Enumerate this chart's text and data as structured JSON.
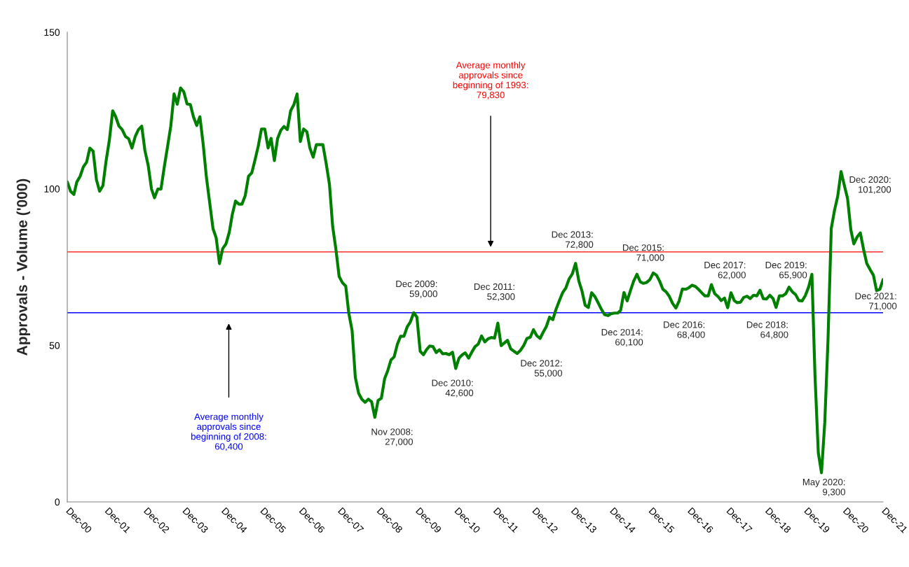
{
  "chart_data": {
    "type": "line",
    "ylabel": "Approvals - Volume ('000)",
    "x": [
      "2000-12",
      "2001-01",
      "2001-02",
      "2001-03",
      "2001-04",
      "2001-05",
      "2001-06",
      "2001-07",
      "2001-08",
      "2001-09",
      "2001-10",
      "2001-11",
      "2001-12",
      "2002-01",
      "2002-02",
      "2002-03",
      "2002-04",
      "2002-05",
      "2002-06",
      "2002-07",
      "2002-08",
      "2002-09",
      "2002-10",
      "2002-11",
      "2002-12",
      "2003-01",
      "2003-02",
      "2003-03",
      "2003-04",
      "2003-05",
      "2003-06",
      "2003-07",
      "2003-08",
      "2003-09",
      "2003-10",
      "2003-11",
      "2003-12",
      "2004-01",
      "2004-02",
      "2004-03",
      "2004-04",
      "2004-05",
      "2004-06",
      "2004-07",
      "2004-08",
      "2004-09",
      "2004-10",
      "2004-11",
      "2004-12",
      "2005-01",
      "2005-02",
      "2005-03",
      "2005-04",
      "2005-05",
      "2005-06",
      "2005-07",
      "2005-08",
      "2005-09",
      "2005-10",
      "2005-11",
      "2005-12",
      "2006-01",
      "2006-02",
      "2006-03",
      "2006-04",
      "2006-05",
      "2006-06",
      "2006-07",
      "2006-08",
      "2006-09",
      "2006-10",
      "2006-11",
      "2006-12",
      "2007-01",
      "2007-02",
      "2007-03",
      "2007-04",
      "2007-05",
      "2007-06",
      "2007-07",
      "2007-08",
      "2007-09",
      "2007-10",
      "2007-11",
      "2007-12",
      "2008-01",
      "2008-02",
      "2008-03",
      "2008-04",
      "2008-05",
      "2008-06",
      "2008-07",
      "2008-08",
      "2008-09",
      "2008-10",
      "2008-11",
      "2008-12",
      "2009-01",
      "2009-02",
      "2009-03",
      "2009-04",
      "2009-05",
      "2009-06",
      "2009-07",
      "2009-08",
      "2009-09",
      "2009-10",
      "2009-11",
      "2009-12",
      "2010-01",
      "2010-02",
      "2010-03",
      "2010-04",
      "2010-05",
      "2010-06",
      "2010-07",
      "2010-08",
      "2010-09",
      "2010-10",
      "2010-11",
      "2010-12",
      "2011-01",
      "2011-02",
      "2011-03",
      "2011-04",
      "2011-05",
      "2011-06",
      "2011-07",
      "2011-08",
      "2011-09",
      "2011-10",
      "2011-11",
      "2011-12",
      "2012-01",
      "2012-02",
      "2012-03",
      "2012-04",
      "2012-05",
      "2012-06",
      "2012-07",
      "2012-08",
      "2012-09",
      "2012-10",
      "2012-11",
      "2012-12",
      "2013-01",
      "2013-02",
      "2013-03",
      "2013-04",
      "2013-05",
      "2013-06",
      "2013-07",
      "2013-08",
      "2013-09",
      "2013-10",
      "2013-11",
      "2013-12",
      "2014-01",
      "2014-02",
      "2014-03",
      "2014-04",
      "2014-05",
      "2014-06",
      "2014-07",
      "2014-08",
      "2014-09",
      "2014-10",
      "2014-11",
      "2014-12",
      "2015-01",
      "2015-02",
      "2015-03",
      "2015-04",
      "2015-05",
      "2015-06",
      "2015-07",
      "2015-08",
      "2015-09",
      "2015-10",
      "2015-11",
      "2015-12",
      "2016-01",
      "2016-02",
      "2016-03",
      "2016-04",
      "2016-05",
      "2016-06",
      "2016-07",
      "2016-08",
      "2016-09",
      "2016-10",
      "2016-11",
      "2016-12",
      "2017-01",
      "2017-02",
      "2017-03",
      "2017-04",
      "2017-05",
      "2017-06",
      "2017-07",
      "2017-08",
      "2017-09",
      "2017-10",
      "2017-11",
      "2017-12",
      "2018-01",
      "2018-02",
      "2018-03",
      "2018-04",
      "2018-05",
      "2018-06",
      "2018-07",
      "2018-08",
      "2018-09",
      "2018-10",
      "2018-11",
      "2018-12",
      "2019-01",
      "2019-02",
      "2019-03",
      "2019-04",
      "2019-05",
      "2019-06",
      "2019-07",
      "2019-08",
      "2019-09",
      "2019-10",
      "2019-11",
      "2019-12",
      "2020-01",
      "2020-02",
      "2020-03",
      "2020-04",
      "2020-05",
      "2020-06",
      "2020-07",
      "2020-08",
      "2020-09",
      "2020-10",
      "2020-11",
      "2020-12",
      "2021-01",
      "2021-02",
      "2021-03",
      "2021-04",
      "2021-05",
      "2021-06",
      "2021-07",
      "2021-08",
      "2021-09",
      "2021-10",
      "2021-11",
      "2021-12"
    ],
    "series": [
      {
        "color": "#008000",
        "values": [
          102.2,
          99.2,
          98.2,
          102.2,
          104,
          107,
          108.5,
          113,
          112,
          102.9,
          99.2,
          101,
          108.9,
          115.6,
          124.9,
          123,
          120,
          118.9,
          116.7,
          116,
          113,
          116.7,
          118.9,
          120,
          112.2,
          107.4,
          99.9,
          97.1,
          99.9,
          99.9,
          107,
          113.3,
          120,
          130.3,
          127,
          132.2,
          131,
          127.1,
          126.9,
          123,
          120.2,
          123,
          114.1,
          103.7,
          95.5,
          87.3,
          84.3,
          76.1,
          80.9,
          82.4,
          86.1,
          91.7,
          96.1,
          95.1,
          95.1,
          97.8,
          104,
          105.1,
          109.2,
          113.7,
          119.1,
          119.1,
          113,
          116.1,
          109,
          116,
          118.7,
          119.9,
          118.9,
          124.9,
          126.8,
          130.3,
          115.1,
          119.1,
          118.2,
          113,
          110.1,
          114.1,
          114.1,
          114.1,
          108.1,
          101.4,
          88,
          80.6,
          72,
          70,
          68.9,
          60.2,
          54.7,
          39.8,
          34.7,
          32.8,
          31.8,
          32.8,
          32,
          27,
          32.4,
          33.1,
          39.4,
          41.8,
          45.3,
          46.3,
          50.4,
          52.9,
          52.9,
          55.9,
          57.5,
          60.4,
          59,
          48.1,
          47,
          48.6,
          49.8,
          49.6,
          47.7,
          48.6,
          47.3,
          47.4,
          47,
          47.8,
          42.6,
          45.9,
          47,
          47.6,
          45.9,
          47.8,
          49.6,
          50.4,
          53,
          51.1,
          52.1,
          52.5,
          52.3,
          57.1,
          49.9,
          50.7,
          51.6,
          48.9,
          48.1,
          47.4,
          48.4,
          50,
          52.2,
          52.6,
          55,
          53.1,
          52.2,
          54.1,
          56,
          59,
          58.2,
          61.5,
          64.2,
          66.8,
          68.3,
          71.2,
          72.8,
          76.2,
          70.5,
          67.5,
          62.8,
          62.1,
          66.8,
          65.6,
          63.6,
          61.5,
          59.8,
          59.5,
          60.1,
          60.3,
          60.3,
          61.2,
          66.9,
          64.2,
          67.5,
          70.5,
          72.7,
          70.3,
          69.8,
          70.1,
          71,
          73.1,
          72.4,
          70.5,
          67.9,
          67.1,
          65.6,
          63.4,
          61.9,
          64.2,
          68,
          67.9,
          68.4,
          69.2,
          68.8,
          67.9,
          66.8,
          65.8,
          65.8,
          69.4,
          66.5,
          65.6,
          64.3,
          65.1,
          62,
          66.8,
          64.3,
          63.6,
          63.8,
          65.3,
          65.7,
          64.9,
          66,
          65.8,
          67.6,
          64.9,
          64.8,
          66,
          64.9,
          62.1,
          65.8,
          65.8,
          66.5,
          68.6,
          67.1,
          66.2,
          64.3,
          64.2,
          65.9,
          68.6,
          72.7,
          40.3,
          15.7,
          9.3,
          25.4,
          51.5,
          87.3,
          93.2,
          97.7,
          105.5,
          101.2,
          96.9,
          86.9,
          82.4,
          84.6,
          85.9,
          80.6,
          76.1,
          74.2,
          72.4,
          67.5,
          67.9,
          71
        ]
      }
    ],
    "xlim": [
      "2000-12",
      "2021-12"
    ],
    "xticks": [
      {
        "value": "2000-12",
        "label": "Dec-00"
      },
      {
        "value": "2001-12",
        "label": "Dec-01"
      },
      {
        "value": "2002-12",
        "label": "Dec-02"
      },
      {
        "value": "2003-12",
        "label": "Dec-03"
      },
      {
        "value": "2004-12",
        "label": "Dec-04"
      },
      {
        "value": "2005-12",
        "label": "Dec-05"
      },
      {
        "value": "2006-12",
        "label": "Dec-06"
      },
      {
        "value": "2007-12",
        "label": "Dec-07"
      },
      {
        "value": "2008-12",
        "label": "Dec-08"
      },
      {
        "value": "2009-12",
        "label": "Dec-09"
      },
      {
        "value": "2010-12",
        "label": "Dec-10"
      },
      {
        "value": "2011-12",
        "label": "Dec-11"
      },
      {
        "value": "2012-12",
        "label": "Dec-12"
      },
      {
        "value": "2013-12",
        "label": "Dec-13"
      },
      {
        "value": "2014-12",
        "label": "Dec-14"
      },
      {
        "value": "2015-12",
        "label": "Dec-15"
      },
      {
        "value": "2016-12",
        "label": "Dec-16"
      },
      {
        "value": "2017-12",
        "label": "Dec-17"
      },
      {
        "value": "2018-12",
        "label": "Dec-18"
      },
      {
        "value": "2019-12",
        "label": "Dec-19"
      },
      {
        "value": "2020-12",
        "label": "Dec-20"
      },
      {
        "value": "2021-12",
        "label": "Dec-21"
      }
    ],
    "ylim": [
      0,
      150
    ],
    "yticks": [
      0,
      50,
      100,
      150
    ],
    "ref_lines": [
      {
        "axis": "y",
        "value": 79.83,
        "label": "Average monthly\napprovals since\nbeginning of 1993:\n79,830",
        "color": "#ff0000"
      },
      {
        "axis": "y",
        "value": 60.4,
        "label": "Average monthly\napprovals since\nbeginning of 2008:\n60,400",
        "color": "#0000ff"
      }
    ],
    "annotations": [
      "Nov 2008:\n27,000",
      "Dec 2009:\n59,000",
      "Dec 2010:\n42,600",
      "Dec 2011:\n52,300",
      "Dec 2012:\n55,000",
      "Dec 2013:\n72,800",
      "Dec 2014:\n60,100",
      "Dec 2015:\n71,000",
      "Dec 2016:\n68,400",
      "Dec 2017:\n62,000",
      "Dec 2018:\n64,800",
      "Dec 2019:\n65,900",
      "May 2020:\n9,300",
      "Dec 2020:\n101,200",
      "Dec 2021:\n71,000"
    ]
  }
}
